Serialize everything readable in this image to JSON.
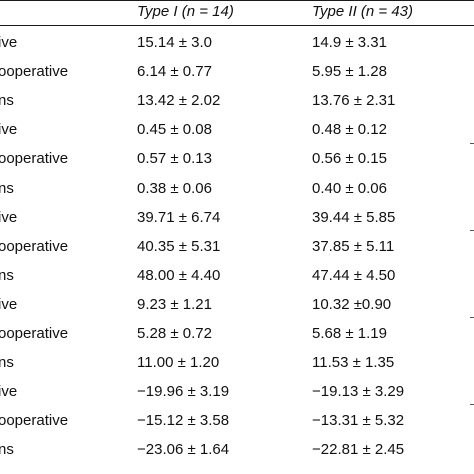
{
  "table": {
    "columns": [
      "",
      "Type I (n = 14)",
      "Type II (n = 43)"
    ],
    "rows": [
      {
        "label": "ive",
        "type_i": "15.14 ± 3.0",
        "type_ii": "14.9 ± 3.31"
      },
      {
        "label": "ooperative",
        "type_i": "6.14 ± 0.77",
        "type_ii": "5.95 ± 1.28"
      },
      {
        "label": "ns",
        "type_i": "13.42 ± 2.02",
        "type_ii": "13.76 ± 2.31"
      },
      {
        "label": "ive",
        "type_i": "0.45 ± 0.08",
        "type_ii": "0.48 ± 0.12"
      },
      {
        "label": "ooperative",
        "type_i": "0.57 ± 0.13",
        "type_ii": "0.56 ± 0.15"
      },
      {
        "label": "ns",
        "type_i": "0.38 ± 0.06",
        "type_ii": "0.40 ± 0.06"
      },
      {
        "label": "ive",
        "type_i": "39.71 ± 6.74",
        "type_ii": "39.44 ± 5.85"
      },
      {
        "label": "ooperative",
        "type_i": "40.35 ± 5.31",
        "type_ii": "37.85 ± 5.11"
      },
      {
        "label": "ns",
        "type_i": "48.00 ± 4.40",
        "type_ii": "47.44 ± 4.50"
      },
      {
        "label": "ive",
        "type_i": "9.23 ± 1.21",
        "type_ii": "10.32 ±0.90"
      },
      {
        "label": "ooperative",
        "type_i": "5.28 ± 0.72",
        "type_ii": "5.68 ± 1.19"
      },
      {
        "label": "ns",
        "type_i": "11.00 ± 1.20",
        "type_ii": "11.53 ± 1.35"
      },
      {
        "label": "ive",
        "type_i": "−19.96 ± 3.19",
        "type_ii": "−19.13 ± 3.29"
      },
      {
        "label": "ooperative",
        "type_i": "−15.12 ± 3.58",
        "type_ii": "−13.31 ± 5.32"
      },
      {
        "label": "ns",
        "type_i": "−23.06 ± 1.64",
        "type_ii": "−22.81 ± 2.45"
      }
    ]
  }
}
